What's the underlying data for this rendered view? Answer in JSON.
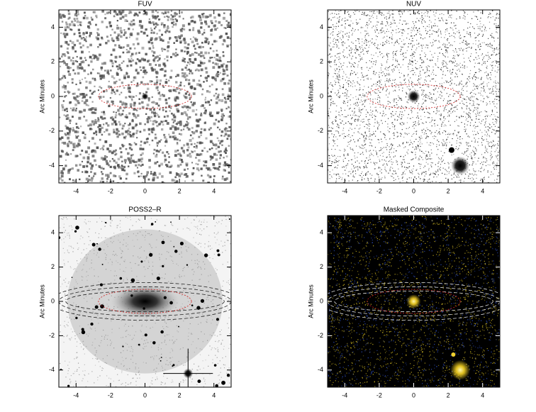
{
  "chart_data": [
    {
      "type": "image",
      "title": "FUV",
      "ylabel": "Arc Minutes",
      "xlim": [
        -5,
        5
      ],
      "ylim": [
        -5,
        5
      ],
      "xticks": [
        -4,
        -2,
        0,
        2,
        4
      ],
      "yticks": [
        -4,
        -2,
        0,
        2,
        4
      ],
      "background": "#ffffff",
      "color": "#555555"
    },
    {
      "type": "image",
      "title": "NUV",
      "ylabel": "Arc Minutes",
      "xlim": [
        -5,
        5
      ],
      "ylim": [
        -5,
        5
      ],
      "xticks": [
        -4,
        -2,
        0,
        2,
        4
      ],
      "yticks": [
        -4,
        -2,
        0,
        2,
        4
      ],
      "background": "#ffffff",
      "color": "#222222"
    },
    {
      "type": "image",
      "title": "POSS2–R",
      "ylabel": "Arc Minutes",
      "xlim": [
        -5,
        5
      ],
      "ylim": [
        -5,
        5
      ],
      "xticks": [
        -4,
        -2,
        0,
        2,
        4
      ],
      "yticks": [
        -4,
        -2,
        0,
        2,
        4
      ],
      "background": "#f4f4f4",
      "color": "#999999"
    },
    {
      "type": "image",
      "title": "Masked Composite",
      "ylabel": "Arc Minutes",
      "xlim": [
        -5,
        5
      ],
      "ylim": [
        -5,
        5
      ],
      "xticks": [
        -4,
        -2,
        0,
        2,
        4
      ],
      "yticks": [
        -4,
        -2,
        0,
        2,
        4
      ],
      "background": "#000000",
      "color": "#c8b020"
    }
  ]
}
